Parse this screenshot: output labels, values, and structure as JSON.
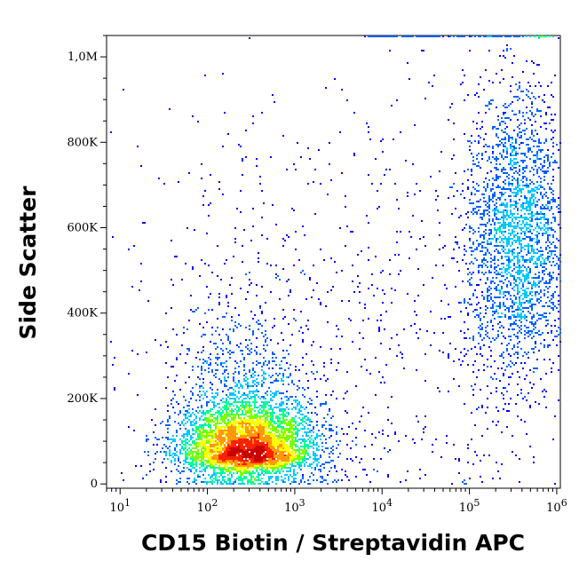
{
  "chart_data": {
    "type": "scatter",
    "style": "flow cytometry density dot plot",
    "xlabel": "CD15 Biotin / Streptavidin APC",
    "ylabel": "Side Scatter",
    "x_scale": "log",
    "xlim": [
      7,
      1100000
    ],
    "ylim": [
      -10000,
      1050000
    ],
    "x_ticks": [
      {
        "value": 10,
        "base": "10",
        "exp": "1"
      },
      {
        "value": 100,
        "base": "10",
        "exp": "2"
      },
      {
        "value": 1000,
        "base": "10",
        "exp": "3"
      },
      {
        "value": 10000,
        "base": "10",
        "exp": "4"
      },
      {
        "value": 100000,
        "base": "10",
        "exp": "5"
      },
      {
        "value": 1000000,
        "base": "10",
        "exp": "6"
      }
    ],
    "y_ticks": [
      {
        "value": 0,
        "label": "0"
      },
      {
        "value": 200000,
        "label": "200K"
      },
      {
        "value": 400000,
        "label": "400K"
      },
      {
        "value": 600000,
        "label": "600K"
      },
      {
        "value": 800000,
        "label": "800K"
      },
      {
        "value": 1000000,
        "label": "1,0M"
      }
    ],
    "populations": [
      {
        "x_center": 280,
        "y_center": 75000,
        "x_spread_decades": 0.38,
        "y_spread": 110000,
        "count": 9000,
        "density": "high"
      },
      {
        "x_center": 350000,
        "y_center": 580000,
        "x_spread_decades": 0.3,
        "y_spread": 170000,
        "count": 2600,
        "density": "medium"
      },
      {
        "x_center": 3000,
        "y_center": 350000,
        "x_spread_decades": 1.4,
        "y_spread": 300000,
        "count": 900,
        "density": "sparse"
      }
    ],
    "density_colors": [
      "#0000ff",
      "#0060ff",
      "#00c8ff",
      "#00ff9a",
      "#7cff00",
      "#ffff00",
      "#ff9a00",
      "#ff2000",
      "#c80000"
    ],
    "grid": false
  }
}
